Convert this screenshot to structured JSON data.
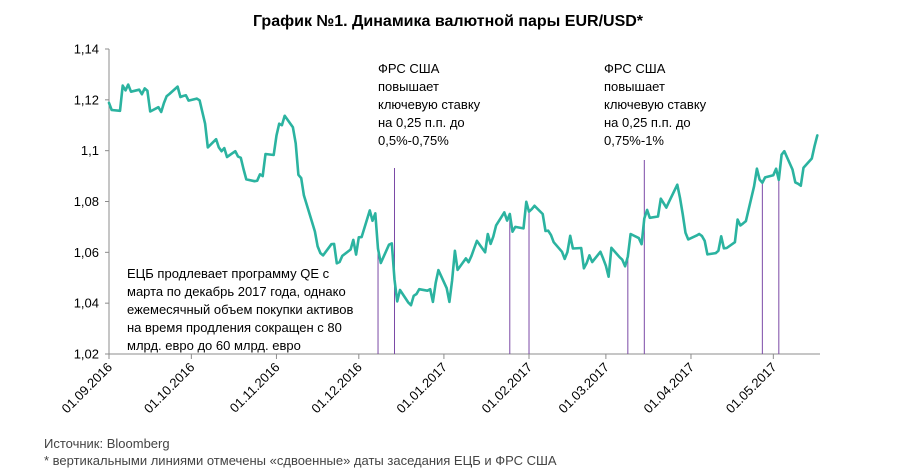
{
  "chart_data": {
    "type": "line",
    "title": "График №1. Динамика валютной пары EUR/USD*",
    "xlabel": "",
    "ylabel": "",
    "ylim": [
      1.02,
      1.14
    ],
    "y_ticks": [
      "1,02",
      "1,04",
      "1,06",
      "1,08",
      "1,1",
      "1,12",
      "1,14"
    ],
    "x_range": [
      "2016-09-01",
      "2017-05-18"
    ],
    "x_ticks": [
      {
        "date": "2016-09-01",
        "label": "01.09.2016"
      },
      {
        "date": "2016-10-01",
        "label": "01.10.2016"
      },
      {
        "date": "2016-11-01",
        "label": "01.11.2016"
      },
      {
        "date": "2016-12-01",
        "label": "01.12.2016"
      },
      {
        "date": "2017-01-01",
        "label": "01.01.2017"
      },
      {
        "date": "2017-02-01",
        "label": "01.02.2017"
      },
      {
        "date": "2017-03-01",
        "label": "01.03.2017"
      },
      {
        "date": "2017-04-01",
        "label": "01.04.2017"
      },
      {
        "date": "2017-05-01",
        "label": "01.05.2017"
      }
    ],
    "grid": false,
    "line_color": "#2bb3a0",
    "vline_color": "#7b4aa6",
    "series": [
      {
        "name": "",
        "points": [
          [
            "2016-09-01",
            1.1188
          ],
          [
            "2016-09-02",
            1.116
          ],
          [
            "2016-09-05",
            1.1157
          ],
          [
            "2016-09-06",
            1.1256
          ],
          [
            "2016-09-07",
            1.1237
          ],
          [
            "2016-09-08",
            1.126
          ],
          [
            "2016-09-09",
            1.1232
          ],
          [
            "2016-09-12",
            1.124
          ],
          [
            "2016-09-13",
            1.1222
          ],
          [
            "2016-09-14",
            1.1245
          ],
          [
            "2016-09-15",
            1.1236
          ],
          [
            "2016-09-16",
            1.1154
          ],
          [
            "2016-09-19",
            1.1171
          ],
          [
            "2016-09-20",
            1.1152
          ],
          [
            "2016-09-21",
            1.1187
          ],
          [
            "2016-09-22",
            1.1214
          ],
          [
            "2016-09-23",
            1.1223
          ],
          [
            "2016-09-26",
            1.1252
          ],
          [
            "2016-09-27",
            1.1211
          ],
          [
            "2016-09-28",
            1.1215
          ],
          [
            "2016-09-29",
            1.1218
          ],
          [
            "2016-09-30",
            1.1197
          ],
          [
            "2016-10-03",
            1.1205
          ],
          [
            "2016-10-04",
            1.1198
          ],
          [
            "2016-10-05",
            1.1153
          ],
          [
            "2016-10-06",
            1.1106
          ],
          [
            "2016-10-07",
            1.1013
          ],
          [
            "2016-10-10",
            1.1045
          ],
          [
            "2016-10-11",
            1.1013
          ],
          [
            "2016-10-12",
            1.0998
          ],
          [
            "2016-10-13",
            1.101
          ],
          [
            "2016-10-14",
            1.0975
          ],
          [
            "2016-10-17",
            1.0998
          ],
          [
            "2016-10-18",
            1.0977
          ],
          [
            "2016-10-19",
            1.0972
          ],
          [
            "2016-10-20",
            1.0928
          ],
          [
            "2016-10-21",
            1.0887
          ],
          [
            "2016-10-24",
            1.088
          ],
          [
            "2016-10-25",
            1.0882
          ],
          [
            "2016-10-26",
            1.0907
          ],
          [
            "2016-10-27",
            1.09
          ],
          [
            "2016-10-28",
            1.0987
          ],
          [
            "2016-10-31",
            1.0983
          ],
          [
            "2016-11-01",
            1.106
          ],
          [
            "2016-11-02",
            1.1106
          ],
          [
            "2016-11-03",
            1.11
          ],
          [
            "2016-11-04",
            1.1137
          ],
          [
            "2016-11-07",
            1.1092
          ],
          [
            "2016-11-08",
            1.1029
          ],
          [
            "2016-11-09",
            1.0905
          ],
          [
            "2016-11-10",
            1.0892
          ],
          [
            "2016-11-11",
            1.0824
          ],
          [
            "2016-11-14",
            1.0718
          ],
          [
            "2016-11-15",
            1.0682
          ],
          [
            "2016-11-16",
            1.0624
          ],
          [
            "2016-11-17",
            1.0597
          ],
          [
            "2016-11-18",
            1.0588
          ],
          [
            "2016-11-21",
            1.0632
          ],
          [
            "2016-11-22",
            1.0633
          ],
          [
            "2016-11-23",
            1.0557
          ],
          [
            "2016-11-24",
            1.0562
          ],
          [
            "2016-11-25",
            1.0586
          ],
          [
            "2016-11-28",
            1.0611
          ],
          [
            "2016-11-29",
            1.0649
          ],
          [
            "2016-11-30",
            1.0591
          ],
          [
            "2016-12-01",
            1.0659
          ],
          [
            "2016-12-02",
            1.066
          ],
          [
            "2016-12-05",
            1.0765
          ],
          [
            "2016-12-06",
            1.0724
          ],
          [
            "2016-12-07",
            1.0753
          ],
          [
            "2016-12-08",
            1.0614
          ],
          [
            "2016-12-09",
            1.0558
          ],
          [
            "2016-12-12",
            1.063
          ],
          [
            "2016-12-13",
            1.0635
          ],
          [
            "2016-12-14",
            1.0493
          ],
          [
            "2016-12-15",
            1.0407
          ],
          [
            "2016-12-16",
            1.0452
          ],
          [
            "2016-12-19",
            1.0403
          ],
          [
            "2016-12-20",
            1.0392
          ],
          [
            "2016-12-21",
            1.0429
          ],
          [
            "2016-12-22",
            1.0436
          ],
          [
            "2016-12-23",
            1.0455
          ],
          [
            "2016-12-26",
            1.0449
          ],
          [
            "2016-12-27",
            1.0455
          ],
          [
            "2016-12-28",
            1.0405
          ],
          [
            "2016-12-29",
            1.048
          ],
          [
            "2016-12-30",
            1.053
          ],
          [
            "2017-01-02",
            1.0459
          ],
          [
            "2017-01-03",
            1.0405
          ],
          [
            "2017-01-04",
            1.0489
          ],
          [
            "2017-01-05",
            1.0606
          ],
          [
            "2017-01-06",
            1.0531
          ],
          [
            "2017-01-09",
            1.0576
          ],
          [
            "2017-01-10",
            1.0561
          ],
          [
            "2017-01-11",
            1.0585
          ],
          [
            "2017-01-12",
            1.0615
          ],
          [
            "2017-01-13",
            1.0645
          ],
          [
            "2017-01-16",
            1.06
          ],
          [
            "2017-01-17",
            1.0672
          ],
          [
            "2017-01-18",
            1.0633
          ],
          [
            "2017-01-19",
            1.0662
          ],
          [
            "2017-01-20",
            1.0706
          ],
          [
            "2017-01-23",
            1.0757
          ],
          [
            "2017-01-24",
            1.0725
          ],
          [
            "2017-01-25",
            1.0751
          ],
          [
            "2017-01-26",
            1.0681
          ],
          [
            "2017-01-27",
            1.07
          ],
          [
            "2017-01-30",
            1.0694
          ],
          [
            "2017-01-31",
            1.0799
          ],
          [
            "2017-02-01",
            1.076
          ],
          [
            "2017-02-02",
            1.077
          ],
          [
            "2017-02-03",
            1.0783
          ],
          [
            "2017-02-06",
            1.0751
          ],
          [
            "2017-02-07",
            1.0684
          ],
          [
            "2017-02-08",
            1.0685
          ],
          [
            "2017-02-09",
            1.0668
          ],
          [
            "2017-02-10",
            1.064
          ],
          [
            "2017-02-13",
            1.0602
          ],
          [
            "2017-02-14",
            1.0574
          ],
          [
            "2017-02-15",
            1.0601
          ],
          [
            "2017-02-16",
            1.0665
          ],
          [
            "2017-02-17",
            1.0615
          ],
          [
            "2017-02-20",
            1.0617
          ],
          [
            "2017-02-21",
            1.0537
          ],
          [
            "2017-02-22",
            1.0558
          ],
          [
            "2017-02-23",
            1.0588
          ],
          [
            "2017-02-24",
            1.0562
          ],
          [
            "2017-02-27",
            1.0602
          ],
          [
            "2017-02-28",
            1.0576
          ],
          [
            "2017-03-01",
            1.0547
          ],
          [
            "2017-03-02",
            1.0504
          ],
          [
            "2017-03-03",
            1.0618
          ],
          [
            "2017-03-06",
            1.0581
          ],
          [
            "2017-03-07",
            1.0571
          ],
          [
            "2017-03-08",
            1.0545
          ],
          [
            "2017-03-09",
            1.0583
          ],
          [
            "2017-03-10",
            1.0672
          ],
          [
            "2017-03-13",
            1.0656
          ],
          [
            "2017-03-14",
            1.0632
          ],
          [
            "2017-03-15",
            1.0733
          ],
          [
            "2017-03-16",
            1.0767
          ],
          [
            "2017-03-17",
            1.0736
          ],
          [
            "2017-03-20",
            1.0741
          ],
          [
            "2017-03-21",
            1.0811
          ],
          [
            "2017-03-22",
            1.0794
          ],
          [
            "2017-03-23",
            1.0776
          ],
          [
            "2017-03-24",
            1.0799
          ],
          [
            "2017-03-27",
            1.0866
          ],
          [
            "2017-03-28",
            1.0814
          ],
          [
            "2017-03-29",
            1.0751
          ],
          [
            "2017-03-30",
            1.0677
          ],
          [
            "2017-03-31",
            1.0651
          ],
          [
            "2017-04-03",
            1.0666
          ],
          [
            "2017-04-04",
            1.0672
          ],
          [
            "2017-04-05",
            1.0664
          ],
          [
            "2017-04-06",
            1.0645
          ],
          [
            "2017-04-07",
            1.0592
          ],
          [
            "2017-04-10",
            1.0597
          ],
          [
            "2017-04-11",
            1.0606
          ],
          [
            "2017-04-12",
            1.0663
          ],
          [
            "2017-04-13",
            1.0616
          ],
          [
            "2017-04-14",
            1.0617
          ],
          [
            "2017-04-17",
            1.064
          ],
          [
            "2017-04-18",
            1.0729
          ],
          [
            "2017-04-19",
            1.0706
          ],
          [
            "2017-04-20",
            1.0714
          ],
          [
            "2017-04-21",
            1.0723
          ],
          [
            "2017-04-24",
            1.086
          ],
          [
            "2017-04-25",
            1.0929
          ],
          [
            "2017-04-26",
            1.0886
          ],
          [
            "2017-04-27",
            1.0874
          ],
          [
            "2017-04-28",
            1.0895
          ],
          [
            "2017-05-01",
            1.0903
          ],
          [
            "2017-05-02",
            1.0929
          ],
          [
            "2017-05-03",
            1.0885
          ],
          [
            "2017-05-04",
            1.0984
          ],
          [
            "2017-05-05",
            1.0998
          ],
          [
            "2017-05-08",
            1.0926
          ],
          [
            "2017-05-09",
            1.0875
          ],
          [
            "2017-05-10",
            1.087
          ],
          [
            "2017-05-11",
            1.0862
          ],
          [
            "2017-05-12",
            1.0933
          ],
          [
            "2017-05-15",
            1.0969
          ],
          [
            "2017-05-16",
            1.1017
          ],
          [
            "2017-05-17",
            1.106
          ]
        ]
      }
    ],
    "vlines": [
      "2016-12-08",
      "2016-12-14",
      "2017-01-25",
      "2017-02-01",
      "2017-03-09",
      "2017-03-15",
      "2017-04-27",
      "2017-05-03"
    ],
    "annotations": [
      {
        "id": "ecb",
        "lines": [
          "ЕЦБ продлевает программу QE с",
          "марта по декабрь 2017 года, однако",
          "ежемесячный объем покупки активов",
          "на время продления сокращен с 80",
          "млрд. евро до 60 млрд. евро"
        ]
      },
      {
        "id": "fed-dec",
        "lines": [
          "ФРС США",
          "повышает",
          "ключевую ставку",
          "на 0,25 п.п. до",
          "0,5%-0,75%"
        ]
      },
      {
        "id": "fed-mar",
        "lines": [
          "ФРС США",
          "повышает",
          "ключевую ставку",
          "на 0,25 п.п. до",
          "0,75%-1%"
        ]
      }
    ]
  },
  "footer": {
    "source": "Источник: Bloomberg",
    "note": "* вертикальными линиями отмечены «сдвоенные» даты заседания ЕЦБ и ФРС США"
  }
}
